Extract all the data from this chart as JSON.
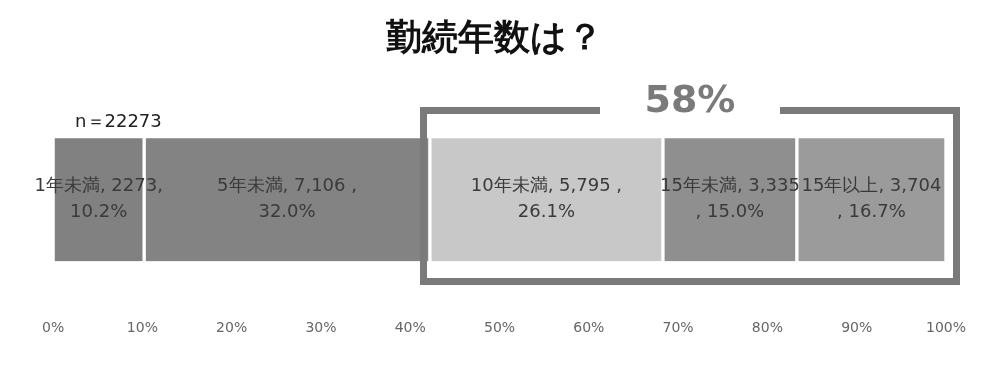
{
  "chart_data": {
    "type": "bar",
    "orientation": "horizontal",
    "stacked": true,
    "title": "勤続年数は？",
    "categories": [
      null
    ],
    "series": [
      {
        "name": "1年未満",
        "color": "#818181",
        "values": [
          10.2
        ],
        "value_labels": [
          ", 2273, 10.2%"
        ]
      },
      {
        "name": "5年未満",
        "color": "#838383",
        "values": [
          32.0
        ],
        "value_labels": [
          ", 7,106 , 32.0%"
        ]
      },
      {
        "name": "10年未満",
        "color": "#c8c8c8",
        "values": [
          26.1
        ],
        "value_labels": [
          ", 5,795 , 26.1%"
        ]
      },
      {
        "name": "15年未満",
        "color": "#8f8f8f",
        "values": [
          15.0
        ],
        "value_labels": [
          ", 3,335 , 15.0%"
        ]
      },
      {
        "name": "15年以上",
        "color": "#9b9b9b",
        "values": [
          16.7
        ],
        "value_labels": [
          ", 3,704 , 16.7%"
        ]
      }
    ],
    "xlim": [
      0,
      100
    ],
    "xticks": [
      {
        "value": 0,
        "label": "0%"
      },
      {
        "value": 10,
        "label": "10%"
      },
      {
        "value": 20,
        "label": "20%"
      },
      {
        "value": 30,
        "label": "30%"
      },
      {
        "value": 40,
        "label": "40%"
      },
      {
        "value": 50,
        "label": "50%"
      },
      {
        "value": 60,
        "label": "60%"
      },
      {
        "value": 70,
        "label": "70%"
      },
      {
        "value": 80,
        "label": "80%"
      },
      {
        "value": 90,
        "label": "90%"
      },
      {
        "value": 100,
        "label": "100%"
      }
    ],
    "grid": false,
    "legend": false,
    "annotations": [
      "n＝22273",
      "58%"
    ]
  }
}
